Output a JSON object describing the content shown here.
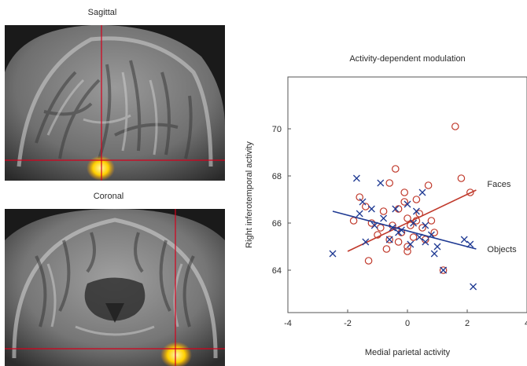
{
  "panels": {
    "sagittal_title": "Sagittal",
    "coronal_title": "Coronal"
  },
  "colors": {
    "faces": "#c0392b",
    "objects": "#1f3a93",
    "crosshair": "#d6001c",
    "activation": "#ffd000"
  },
  "chart_data": {
    "type": "scatter",
    "title": "Activity-dependent modulation",
    "xlabel": "Medial parietal activity",
    "ylabel": "Right inferotemporal activity",
    "xlim": [
      -4,
      4
    ],
    "ylim": [
      62.2,
      72.2
    ],
    "xticks": [
      "-4",
      "-2",
      "0",
      "2",
      "4"
    ],
    "yticks": [
      "64",
      "66",
      "68",
      "70"
    ],
    "grid": false,
    "series": [
      {
        "name": "Faces",
        "marker": "circle",
        "points": [
          [
            1.6,
            70.1
          ],
          [
            -1.6,
            67.1
          ],
          [
            -0.4,
            68.3
          ],
          [
            -0.6,
            67.7
          ],
          [
            -0.1,
            67.3
          ],
          [
            0.3,
            67.0
          ],
          [
            0.7,
            67.6
          ],
          [
            1.8,
            67.9
          ],
          [
            2.1,
            67.3
          ],
          [
            -1.4,
            66.7
          ],
          [
            -0.8,
            66.5
          ],
          [
            -0.3,
            66.6
          ],
          [
            0.0,
            66.2
          ],
          [
            0.4,
            66.4
          ],
          [
            0.8,
            66.1
          ],
          [
            -1.2,
            66.0
          ],
          [
            -0.9,
            65.8
          ],
          [
            -0.5,
            65.9
          ],
          [
            -0.2,
            65.6
          ],
          [
            0.1,
            65.9
          ],
          [
            0.5,
            65.8
          ],
          [
            -1.0,
            65.5
          ],
          [
            -0.6,
            65.3
          ],
          [
            -0.3,
            65.2
          ],
          [
            0.0,
            65.0
          ],
          [
            0.2,
            65.4
          ],
          [
            0.6,
            65.3
          ],
          [
            -1.3,
            64.4
          ],
          [
            -0.7,
            64.9
          ],
          [
            0.0,
            64.8
          ],
          [
            1.2,
            64.0
          ],
          [
            0.9,
            65.6
          ],
          [
            -1.8,
            66.1
          ],
          [
            -0.1,
            66.9
          ],
          [
            0.3,
            66.1
          ]
        ],
        "trend": [
          [
            -2.0,
            64.8
          ],
          [
            2.3,
            67.4
          ]
        ]
      },
      {
        "name": "Objects",
        "marker": "x",
        "points": [
          [
            -1.7,
            67.9
          ],
          [
            -0.9,
            67.7
          ],
          [
            0.5,
            67.3
          ],
          [
            -1.5,
            66.9
          ],
          [
            -1.2,
            66.6
          ],
          [
            -0.4,
            66.6
          ],
          [
            0.3,
            66.5
          ],
          [
            -1.6,
            66.4
          ],
          [
            -0.8,
            66.2
          ],
          [
            -1.1,
            65.9
          ],
          [
            -0.5,
            65.8
          ],
          [
            0.2,
            66.0
          ],
          [
            0.6,
            65.9
          ],
          [
            -0.3,
            65.6
          ],
          [
            0.4,
            65.4
          ],
          [
            0.8,
            65.5
          ],
          [
            -1.4,
            65.2
          ],
          [
            -0.6,
            65.3
          ],
          [
            0.1,
            65.1
          ],
          [
            0.6,
            65.2
          ],
          [
            1.0,
            65.0
          ],
          [
            1.9,
            65.3
          ],
          [
            2.1,
            65.1
          ],
          [
            0.9,
            64.7
          ],
          [
            -2.5,
            64.7
          ],
          [
            1.2,
            64.0
          ],
          [
            2.2,
            63.3
          ],
          [
            0.0,
            66.8
          ],
          [
            -0.2,
            65.7
          ]
        ],
        "trend": [
          [
            -2.5,
            66.5
          ],
          [
            2.3,
            64.9
          ]
        ]
      }
    ]
  }
}
